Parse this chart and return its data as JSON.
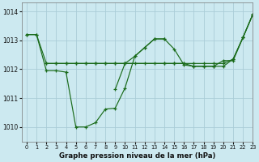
{
  "title": "Graphe pression niveau de la mer (hPa)",
  "bg_color": "#cce9f0",
  "grid_color": "#aacdd8",
  "line_color": "#1a6b1a",
  "ylim": [
    1009.5,
    1014.3
  ],
  "xlim": [
    -0.5,
    23
  ],
  "yticks": [
    1010,
    1011,
    1012,
    1013,
    1014
  ],
  "xticks": [
    0,
    1,
    2,
    3,
    4,
    5,
    6,
    7,
    8,
    9,
    10,
    11,
    12,
    13,
    14,
    15,
    16,
    17,
    18,
    19,
    20,
    21,
    22,
    23
  ],
  "line1_x": [
    0,
    1,
    2,
    3,
    4,
    5,
    6,
    7,
    8,
    9,
    10,
    11,
    12,
    13,
    14,
    15,
    16,
    17,
    18,
    19,
    20,
    21,
    22,
    23
  ],
  "line1_y": [
    1013.2,
    1013.2,
    1011.95,
    1011.95,
    1011.9,
    1010.0,
    1010.0,
    1010.15,
    1010.62,
    1010.65,
    1011.35,
    1012.45,
    1012.75,
    1013.05,
    1013.05,
    1012.7,
    1012.15,
    1012.1,
    1012.1,
    1012.1,
    1012.3,
    1012.3,
    1013.1,
    1013.9
  ],
  "line2_x": [
    2,
    3,
    4,
    5,
    6,
    7,
    8,
    9,
    10,
    11,
    12,
    13,
    14,
    15,
    16,
    17,
    18,
    19,
    20,
    21,
    22,
    23
  ],
  "line2_y": [
    1012.2,
    1012.2,
    1012.2,
    1012.2,
    1012.2,
    1012.2,
    1012.2,
    1012.2,
    1012.2,
    1012.2,
    1012.2,
    1012.2,
    1012.2,
    1012.2,
    1012.2,
    1012.2,
    1012.2,
    1012.2,
    1012.2,
    1012.35,
    1013.1,
    1013.9
  ],
  "line3_x": [
    0,
    1,
    2,
    3,
    4,
    5,
    6,
    7,
    8,
    9,
    10,
    14,
    15,
    16,
    17,
    18,
    19,
    20,
    21,
    22,
    23
  ],
  "line3_y": [
    1013.2,
    1013.2,
    1012.2,
    1012.2,
    1012.2,
    1012.2,
    1012.2,
    1012.2,
    1012.2,
    1012.2,
    1012.2,
    1012.2,
    1012.2,
    1012.2,
    1012.1,
    1012.1,
    1012.1,
    1012.1,
    1012.35,
    1013.1,
    1013.9
  ],
  "line4_x": [
    9,
    10,
    11,
    12,
    13,
    14
  ],
  "line4_y": [
    1011.3,
    1012.2,
    1012.45,
    1012.75,
    1013.05,
    1013.05
  ]
}
